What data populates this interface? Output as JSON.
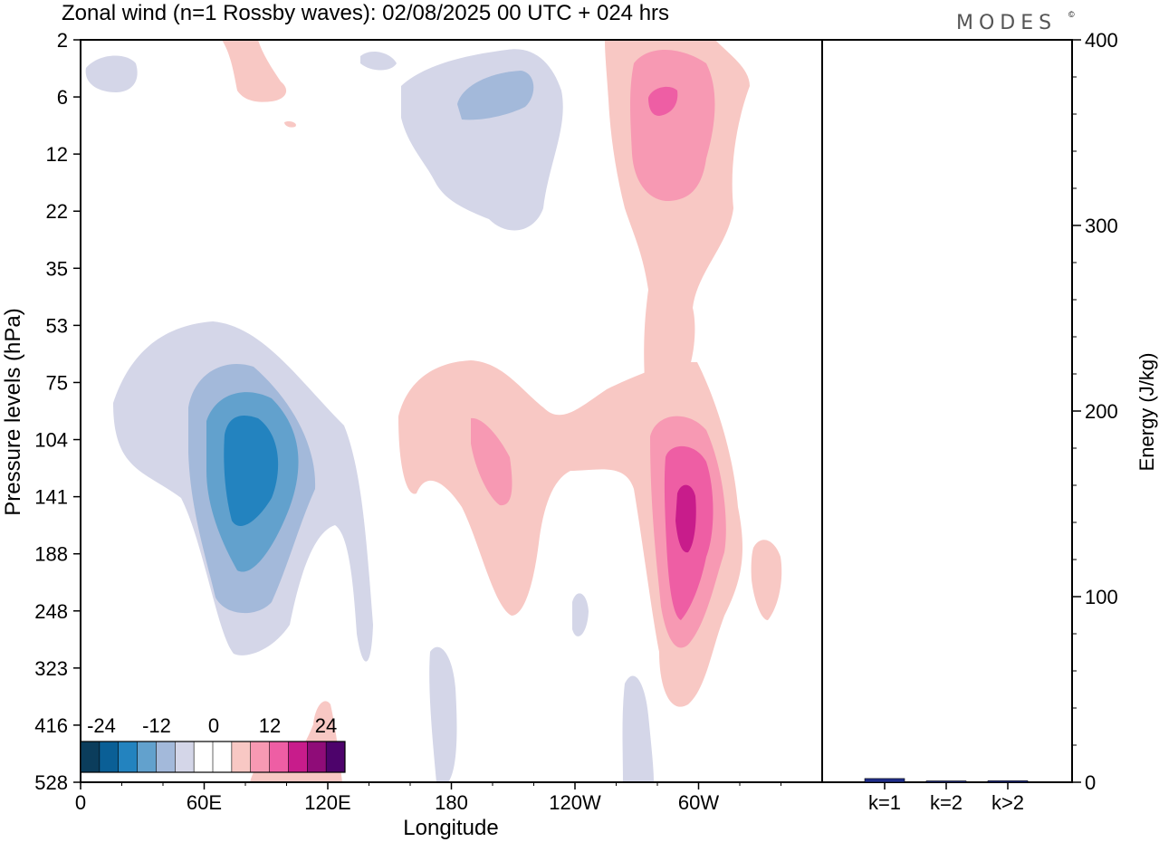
{
  "chart_data": [
    {
      "type": "heatmap",
      "title": "Zonal wind (n=1 Rossby waves):  02/08/2025  00 UTC  + 024 hrs",
      "xlabel": "Longitude",
      "ylabel": "Pressure levels (hPa)",
      "x_ticks": [
        "0",
        "60E",
        "120E",
        "180",
        "120W",
        "60W"
      ],
      "y_ticks": [
        "2",
        "6",
        "12",
        "22",
        "35",
        "53",
        "75",
        "104",
        "141",
        "188",
        "248",
        "323",
        "416",
        "528"
      ],
      "colorbar": {
        "labels": [
          "-24",
          "-12",
          "0",
          "12",
          "24"
        ],
        "colors": [
          "#0b3d5c",
          "#0a5f96",
          "#2383bf",
          "#62a1cd",
          "#a3b9da",
          "#d4d6e8",
          "#ffffff",
          "#ffffff",
          "#f8c8c4",
          "#f799b3",
          "#ee5ea4",
          "#c81c8b",
          "#8f0c78",
          "#4d036b"
        ]
      },
      "contours": [
        {
          "name": "negative-lower-outer",
          "value": -3
        },
        {
          "name": "negative-lower-1",
          "value": -6
        },
        {
          "name": "negative-lower-2",
          "value": -9
        },
        {
          "name": "negative-lower-core",
          "value": -12
        },
        {
          "name": "negative-upper",
          "value": -6
        },
        {
          "name": "positive-upper-outer",
          "value": 3
        },
        {
          "name": "positive-upper-core",
          "value": 9
        },
        {
          "name": "positive-lower-outer",
          "value": 3
        },
        {
          "name": "positive-lower-1",
          "value": 6
        },
        {
          "name": "positive-lower-2",
          "value": 9
        },
        {
          "name": "positive-lower-core",
          "value": 12
        }
      ]
    },
    {
      "type": "bar",
      "ylabel": "Energy (J/kg)",
      "ylim": [
        0,
        400
      ],
      "y_ticks": [
        "0",
        "100",
        "200",
        "300",
        "400"
      ],
      "categories": [
        "k=1",
        "k=2",
        "k>2"
      ],
      "values": [
        2,
        0.3,
        0.8
      ],
      "colors": [
        "#1f2d8a",
        "#1f2d8a",
        "#1f2d8a"
      ]
    }
  ],
  "brand": "MODES",
  "brand_mark": "©"
}
